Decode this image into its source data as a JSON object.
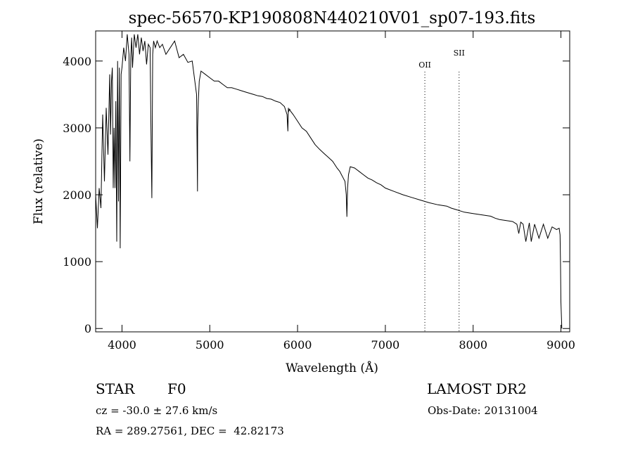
{
  "chart_data": {
    "type": "line",
    "title": "spec-56570-KP190808N440210V01_sp07-193.fits",
    "xlabel": "Wavelength (Å)",
    "ylabel": "Flux (relative)",
    "xlim": [
      3700,
      9100
    ],
    "ylim": [
      -50,
      4450
    ],
    "x_ticks": [
      4000,
      5000,
      6000,
      7000,
      8000,
      9000
    ],
    "y_ticks": [
      0,
      1000,
      2000,
      3000,
      4000
    ],
    "grid": false,
    "legend": "none",
    "series": [
      {
        "x": [
          3700,
          3720,
          3740,
          3760,
          3780,
          3800,
          3820,
          3840,
          3860,
          3870,
          3880,
          3890,
          3900,
          3910,
          3920,
          3930,
          3940,
          3950,
          3960,
          3970,
          3980,
          3990,
          4000,
          4020,
          4040,
          4060,
          4080,
          4090,
          4100,
          4110,
          4120,
          4140,
          4160,
          4180,
          4200,
          4220,
          4240,
          4260,
          4280,
          4300,
          4320,
          4330,
          4340,
          4350,
          4360,
          4380,
          4400,
          4430,
          4460,
          4500,
          4550,
          4600,
          4650,
          4700,
          4750,
          4800,
          4830,
          4850,
          4860,
          4862,
          4870,
          4880,
          4900,
          4950,
          5000,
          5050,
          5100,
          5150,
          5200,
          5250,
          5300,
          5350,
          5400,
          5450,
          5500,
          5550,
          5600,
          5650,
          5700,
          5750,
          5800,
          5850,
          5880,
          5890,
          5895,
          5900,
          5910,
          5920,
          5950,
          6000,
          6050,
          6100,
          6150,
          6200,
          6250,
          6300,
          6350,
          6400,
          6450,
          6480,
          6500,
          6520,
          6540,
          6555,
          6562,
          6570,
          6580,
          6600,
          6650,
          6700,
          6750,
          6800,
          6850,
          6900,
          6950,
          7000,
          7100,
          7200,
          7300,
          7400,
          7500,
          7600,
          7700,
          7750,
          7800,
          7900,
          8000,
          8100,
          8200,
          8250,
          8300,
          8400,
          8450,
          8498,
          8520,
          8542,
          8570,
          8600,
          8640,
          8662,
          8700,
          8750,
          8800,
          8850,
          8900,
          8950,
          8980,
          8990,
          8995,
          9000,
          9010
        ],
        "y": [
          2000,
          1500,
          2100,
          1800,
          3200,
          2200,
          3300,
          2600,
          3800,
          2900,
          3700,
          3900,
          2100,
          3000,
          2100,
          3400,
          1300,
          4000,
          1900,
          3900,
          1200,
          3800,
          3900,
          4200,
          4000,
          4400,
          4100,
          2500,
          4050,
          4350,
          3900,
          4400,
          4200,
          4400,
          4100,
          4350,
          4150,
          4300,
          3950,
          4250,
          4200,
          3000,
          1950,
          4100,
          4300,
          4200,
          4300,
          4200,
          4250,
          4100,
          4200,
          4300,
          4050,
          4100,
          3980,
          4000,
          3700,
          3500,
          2050,
          3000,
          3400,
          3700,
          3850,
          3800,
          3750,
          3700,
          3700,
          3650,
          3600,
          3600,
          3580,
          3560,
          3540,
          3520,
          3500,
          3480,
          3470,
          3440,
          3430,
          3400,
          3380,
          3320,
          3200,
          2950,
          3300,
          3250,
          3280,
          3250,
          3200,
          3100,
          3000,
          2950,
          2850,
          2750,
          2680,
          2620,
          2560,
          2500,
          2400,
          2350,
          2300,
          2250,
          2200,
          2000,
          1670,
          2100,
          2300,
          2420,
          2400,
          2350,
          2300,
          2250,
          2220,
          2180,
          2150,
          2100,
          2050,
          2000,
          1960,
          1920,
          1880,
          1850,
          1830,
          1800,
          1780,
          1740,
          1720,
          1700,
          1680,
          1650,
          1630,
          1610,
          1600,
          1560,
          1420,
          1590,
          1560,
          1300,
          1580,
          1300,
          1560,
          1350,
          1560,
          1350,
          1520,
          1480,
          1500,
          1400,
          1000,
          400,
          0
        ]
      }
    ],
    "annotations": [
      {
        "label": "OII",
        "x": 7450
      },
      {
        "label": "SII",
        "x": 7840
      }
    ]
  },
  "info": {
    "object_type": "STAR",
    "subclass": "F0",
    "survey": "LAMOST DR2",
    "velocity": "cz = -30.0 ± 27.6 km/s",
    "obs_date": "Obs-Date: 20131004",
    "coords": "RA = 289.27561, DEC =  42.82173"
  }
}
